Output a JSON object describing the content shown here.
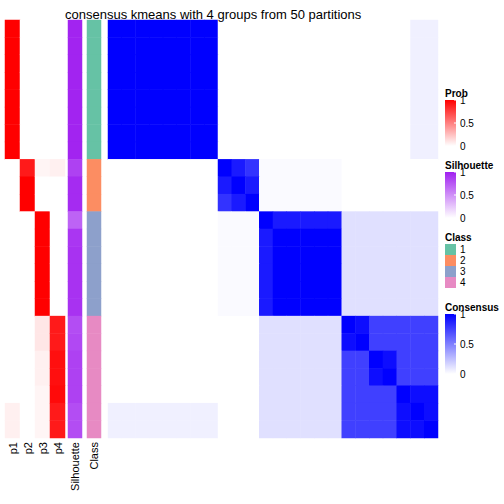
{
  "chart_data": {
    "type": "heatmap",
    "title": "consensus kmeans with 4 groups from 50 partitions",
    "probability": {
      "columns": [
        "p1",
        "p2",
        "p3",
        "p4"
      ],
      "values": [
        [
          1,
          1,
          1,
          1,
          1,
          1,
          1,
          1,
          0,
          0,
          0,
          0,
          0,
          0,
          0,
          0,
          0,
          0,
          0,
          0,
          0,
          0,
          0.06,
          0.06
        ],
        [
          0,
          0,
          0,
          0,
          0,
          0,
          0,
          0,
          0.9,
          1,
          1,
          0,
          0,
          0,
          0,
          0,
          0,
          0,
          0,
          0,
          0,
          0,
          0,
          0
        ],
        [
          0,
          0,
          0,
          0,
          0,
          0,
          0,
          0,
          0.04,
          0,
          0,
          1,
          1,
          1,
          1,
          1,
          1,
          0.1,
          0.1,
          0.06,
          0.06,
          0.04,
          0.04,
          0.04
        ],
        [
          0,
          0,
          0,
          0,
          0,
          0,
          0,
          0,
          0.06,
          0,
          0,
          0,
          0,
          0,
          0,
          0,
          0,
          0.9,
          0.9,
          0.94,
          0.94,
          0.96,
          0.9,
          0.9
        ]
      ]
    },
    "silhouette": {
      "label": "Silhouette",
      "values": [
        0.98,
        0.98,
        0.98,
        0.98,
        0.98,
        0.98,
        0.98,
        0.98,
        0.85,
        0.95,
        0.95,
        0.7,
        0.9,
        0.92,
        0.92,
        0.92,
        0.92,
        0.8,
        0.82,
        0.85,
        0.85,
        0.85,
        0.8,
        0.8
      ]
    },
    "class_annotation": {
      "label": "Class",
      "values": [
        1,
        1,
        1,
        1,
        1,
        1,
        1,
        1,
        2,
        2,
        2,
        3,
        3,
        3,
        3,
        3,
        3,
        4,
        4,
        4,
        4,
        4,
        4,
        4
      ],
      "levels": [
        1,
        2,
        3,
        4
      ],
      "colors": [
        "#66c2a5",
        "#fc8d62",
        "#8da0cb",
        "#e78ac3"
      ]
    },
    "consensus": {
      "label": "Consensus",
      "cells": [
        [
          1,
          1,
          1,
          1,
          1,
          1,
          1,
          1,
          0,
          0,
          0,
          0,
          0,
          0,
          0,
          0,
          0,
          0,
          0,
          0,
          0,
          0,
          0.06,
          0.06
        ],
        [
          1,
          1,
          1,
          1,
          1,
          1,
          1,
          1,
          0,
          0,
          0,
          0,
          0,
          0,
          0,
          0,
          0,
          0,
          0,
          0,
          0,
          0,
          0.06,
          0.06
        ],
        [
          1,
          1,
          1,
          1,
          1,
          1,
          1,
          1,
          0,
          0,
          0,
          0,
          0,
          0,
          0,
          0,
          0,
          0,
          0,
          0,
          0,
          0,
          0.06,
          0.06
        ],
        [
          1,
          1,
          1,
          1,
          1,
          1,
          1,
          1,
          0,
          0,
          0,
          0,
          0,
          0,
          0,
          0,
          0,
          0,
          0,
          0,
          0,
          0,
          0.06,
          0.06
        ],
        [
          1,
          1,
          1,
          1,
          1,
          1,
          1,
          1,
          0,
          0,
          0,
          0,
          0,
          0,
          0,
          0,
          0,
          0,
          0,
          0,
          0,
          0,
          0.06,
          0.06
        ],
        [
          1,
          1,
          1,
          1,
          1,
          1,
          1,
          1,
          0,
          0,
          0,
          0,
          0,
          0,
          0,
          0,
          0,
          0,
          0,
          0,
          0,
          0,
          0.06,
          0.06
        ],
        [
          1,
          1,
          1,
          1,
          1,
          1,
          1,
          1,
          0,
          0,
          0,
          0,
          0,
          0,
          0,
          0,
          0,
          0,
          0,
          0,
          0,
          0,
          0.06,
          0.06
        ],
        [
          1,
          1,
          1,
          1,
          1,
          1,
          1,
          1,
          0,
          0,
          0,
          0,
          0,
          0,
          0,
          0,
          0,
          0,
          0,
          0,
          0,
          0,
          0.06,
          0.06
        ],
        [
          0,
          0,
          0,
          0,
          0,
          0,
          0,
          0,
          1,
          0.9,
          0.8,
          0.02,
          0.02,
          0.02,
          0.02,
          0.02,
          0.02,
          0,
          0,
          0,
          0,
          0,
          0,
          0
        ],
        [
          0,
          0,
          0,
          0,
          0,
          0,
          0,
          0,
          0.9,
          1,
          0.9,
          0.02,
          0.02,
          0.02,
          0.02,
          0.02,
          0.02,
          0,
          0,
          0,
          0,
          0,
          0,
          0
        ],
        [
          0,
          0,
          0,
          0,
          0,
          0,
          0,
          0,
          0.8,
          0.9,
          1,
          0.02,
          0.02,
          0.02,
          0.02,
          0.02,
          0.02,
          0,
          0,
          0,
          0,
          0,
          0,
          0
        ],
        [
          0,
          0,
          0,
          0,
          0,
          0,
          0,
          0,
          0.02,
          0.02,
          0.02,
          1,
          0.9,
          0.9,
          0.9,
          0.9,
          0.9,
          0.12,
          0.12,
          0.12,
          0.12,
          0.12,
          0.12,
          0.12
        ],
        [
          0,
          0,
          0,
          0,
          0,
          0,
          0,
          0,
          0.02,
          0.02,
          0.02,
          0.9,
          1,
          1,
          1,
          1,
          1,
          0.12,
          0.12,
          0.12,
          0.12,
          0.12,
          0.12,
          0.12
        ],
        [
          0,
          0,
          0,
          0,
          0,
          0,
          0,
          0,
          0.02,
          0.02,
          0.02,
          0.9,
          1,
          1,
          1,
          1,
          1,
          0.12,
          0.12,
          0.12,
          0.12,
          0.12,
          0.12,
          0.12
        ],
        [
          0,
          0,
          0,
          0,
          0,
          0,
          0,
          0,
          0.02,
          0.02,
          0.02,
          0.9,
          1,
          1,
          1,
          1,
          1,
          0.12,
          0.12,
          0.12,
          0.12,
          0.12,
          0.12,
          0.12
        ],
        [
          0,
          0,
          0,
          0,
          0,
          0,
          0,
          0,
          0.02,
          0.02,
          0.02,
          0.9,
          1,
          1,
          1,
          1,
          1,
          0.12,
          0.12,
          0.12,
          0.12,
          0.12,
          0.12,
          0.12
        ],
        [
          0,
          0,
          0,
          0,
          0,
          0,
          0,
          0,
          0.02,
          0.02,
          0.02,
          0.9,
          1,
          1,
          1,
          1,
          1,
          0.12,
          0.12,
          0.12,
          0.12,
          0.12,
          0.12,
          0.12
        ],
        [
          0,
          0,
          0,
          0,
          0,
          0,
          0,
          0,
          0,
          0,
          0,
          0.12,
          0.12,
          0.12,
          0.12,
          0.12,
          0.12,
          1,
          0.95,
          0.75,
          0.75,
          0.75,
          0.75,
          0.75
        ],
        [
          0,
          0,
          0,
          0,
          0,
          0,
          0,
          0,
          0,
          0,
          0,
          0.12,
          0.12,
          0.12,
          0.12,
          0.12,
          0.12,
          0.95,
          1,
          0.75,
          0.75,
          0.75,
          0.75,
          0.75
        ],
        [
          0,
          0,
          0,
          0,
          0,
          0,
          0,
          0,
          0,
          0,
          0,
          0.12,
          0.12,
          0.12,
          0.12,
          0.12,
          0.12,
          0.75,
          0.75,
          1,
          0.95,
          0.75,
          0.75,
          0.75
        ],
        [
          0,
          0,
          0,
          0,
          0,
          0,
          0,
          0,
          0,
          0,
          0,
          0.12,
          0.12,
          0.12,
          0.12,
          0.12,
          0.12,
          0.75,
          0.75,
          0.95,
          1,
          0.75,
          0.75,
          0.75
        ],
        [
          0,
          0,
          0,
          0,
          0,
          0,
          0,
          0,
          0,
          0,
          0,
          0.12,
          0.12,
          0.12,
          0.12,
          0.12,
          0.12,
          0.75,
          0.75,
          0.75,
          0.75,
          1,
          0.95,
          0.95
        ],
        [
          0.06,
          0.06,
          0.06,
          0.06,
          0.06,
          0.06,
          0.06,
          0.06,
          0,
          0,
          0,
          0.12,
          0.12,
          0.12,
          0.12,
          0.12,
          0.12,
          0.75,
          0.75,
          0.75,
          0.75,
          0.95,
          1,
          0.95
        ],
        [
          0.06,
          0.06,
          0.06,
          0.06,
          0.06,
          0.06,
          0.06,
          0.06,
          0,
          0,
          0,
          0.12,
          0.12,
          0.12,
          0.12,
          0.12,
          0.12,
          0.75,
          0.75,
          0.75,
          0.75,
          0.95,
          0.95,
          1
        ]
      ]
    },
    "colorbars": [
      {
        "title": "Prob",
        "range": [
          0,
          1
        ],
        "ticks": [
          0,
          0.5,
          1
        ],
        "color": "#ff0000"
      },
      {
        "title": "Silhouette",
        "range": [
          0,
          1
        ],
        "ticks": [
          0,
          0.5,
          1
        ],
        "color": "#a020f0"
      },
      {
        "title": "Consensus",
        "range": [
          0,
          1
        ],
        "ticks": [
          0,
          0.5,
          1
        ],
        "color": "#0000ff"
      }
    ]
  }
}
